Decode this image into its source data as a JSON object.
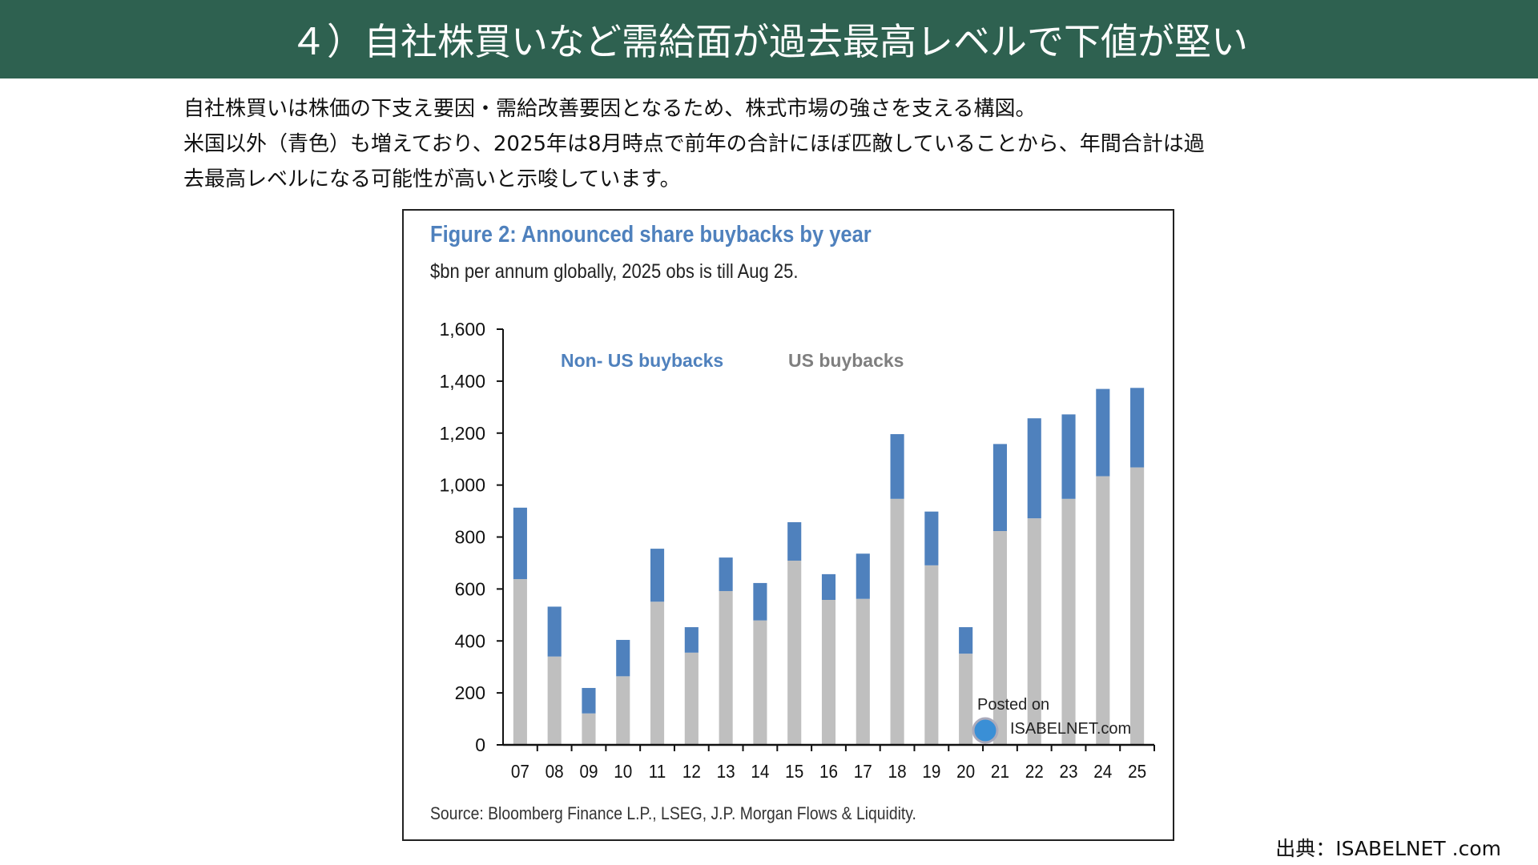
{
  "header": {
    "title": "４）自社株買いなど需給面が過去最高レベルで下値が堅い"
  },
  "description": [
    "自社株買いは株価の下支え要因・需給改善要因となるため、株式市場の強さを支える構図。",
    "米国以外（青色）も増えており、2025年は8月時点で前年の合計にほぼ匹敵していることから、年間合計は過",
    "去最高レベルになる可能性が高いと示唆しています。"
  ],
  "credit": "出典：ISABELNET .com",
  "watermark": {
    "line1": "Posted on",
    "line2": "ISABELNET.com"
  },
  "chart_data": {
    "type": "bar",
    "stacked": true,
    "title": "Figure 2: Announced share buybacks by year",
    "subtitle": "$bn per annum globally, 2025 obs is till Aug 25.",
    "source": "Source: Bloomberg Finance L.P., LSEG, J.P. Morgan Flows & Liquidity.",
    "categories": [
      "07",
      "08",
      "09",
      "10",
      "11",
      "12",
      "13",
      "14",
      "15",
      "16",
      "17",
      "18",
      "19",
      "20",
      "21",
      "22",
      "23",
      "24",
      "25"
    ],
    "series": [
      {
        "name": "US buybacks",
        "color": "#bfbfbf",
        "values": [
          638,
          340,
          121,
          264,
          551,
          355,
          592,
          479,
          709,
          558,
          562,
          947,
          691,
          351,
          823,
          872,
          947,
          1034,
          1068
        ]
      },
      {
        "name": "Non- US buybacks",
        "color": "#4f81bd",
        "values": [
          275,
          192,
          98,
          140,
          204,
          98,
          129,
          144,
          148,
          99,
          174,
          249,
          207,
          102,
          335,
          385,
          325,
          336,
          306
        ]
      }
    ],
    "ylim": [
      0,
      1600
    ],
    "yticks": [
      "0",
      "200",
      "400",
      "600",
      "800",
      "1,000",
      "1,200",
      "1,400",
      "1,600"
    ],
    "legend": "top-left inside plot"
  }
}
